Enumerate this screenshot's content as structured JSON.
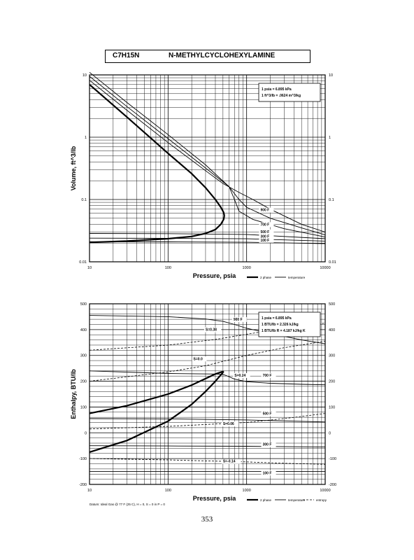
{
  "header": {
    "formula": "C7H15N",
    "compound_name": "N-METHYLCYCLOHEXYLAMINE"
  },
  "page_number": "353",
  "footer_note": "Datum: Ideal Gas @ 77 F (25 C), H = 0, S = 0 in P = 0",
  "chart_data": [
    {
      "type": "line",
      "title": "",
      "xlabel": "Pressure,  psia",
      "ylabel": "Volume, ft^3/lb",
      "x_scale": "log",
      "y_scale": "log",
      "xlim": [
        10,
        10000
      ],
      "ylim": [
        0.01,
        10
      ],
      "x_ticks": [
        "10",
        "100",
        "1000",
        "10000"
      ],
      "y_ticks_left": [
        "10",
        "1",
        "0.1",
        "0.01"
      ],
      "y_ticks_right": [
        "10",
        "1",
        "0.1",
        "0.01"
      ],
      "grid": true,
      "legend": {
        "position": "bottom-right",
        "entries": [
          "2 phase",
          "temperature"
        ]
      },
      "info_box": [
        "1 psia = 6.895 kPa",
        "1 ft^3/lb = .0624 m^3/kg"
      ],
      "series": [
        {
          "name": "",
          "style": "2 phase",
          "x": [
            10,
            30,
            100,
            200,
            300,
            400,
            470,
            510,
            520
          ],
          "y": [
            7,
            2.1,
            0.55,
            0.26,
            0.155,
            0.1,
            0.075,
            0.062,
            0.055
          ]
        },
        {
          "name": "",
          "style": "2 phase",
          "x": [
            10,
            30,
            100,
            200,
            300,
            400,
            470,
            510,
            520
          ],
          "y": [
            0.0205,
            0.0215,
            0.0235,
            0.0255,
            0.0285,
            0.033,
            0.04,
            0.048,
            0.055
          ]
        },
        {
          "name": "",
          "style": "temperature",
          "x": [
            10,
            30,
            100,
            300,
            500,
            800,
            1200,
            2000,
            5000,
            10000
          ],
          "y": [
            8.2,
            2.7,
            0.82,
            0.29,
            0.18,
            0.13,
            0.1,
            0.07,
            0.04,
            0.03
          ]
        },
        {
          "name": "",
          "style": "temperature",
          "x": [
            10,
            30,
            100,
            300,
            600,
            800,
            1000,
            2000,
            5000,
            10000
          ],
          "y": [
            9.5,
            3.1,
            0.95,
            0.32,
            0.16,
            0.1,
            0.075,
            0.05,
            0.035,
            0.027
          ]
        },
        {
          "name": "",
          "style": "temperature",
          "x": [
            10,
            30,
            100,
            300,
            600,
            700,
            800,
            1200,
            3000,
            10000
          ],
          "y": [
            11,
            3.6,
            1.1,
            0.36,
            0.16,
            0.1,
            0.065,
            0.048,
            0.034,
            0.025
          ]
        },
        {
          "name": "",
          "style": "temperature",
          "x": [
            10,
            100,
            1000,
            10000
          ],
          "y": [
            0.0285,
            0.0283,
            0.0275,
            0.0235
          ]
        },
        {
          "name": "",
          "style": "temperature",
          "x": [
            10,
            100,
            1000,
            10000
          ],
          "y": [
            0.024,
            0.0238,
            0.0234,
            0.0215
          ]
        },
        {
          "name": "",
          "style": "temperature",
          "x": [
            10,
            100,
            1000,
            10000
          ],
          "y": [
            0.021,
            0.0209,
            0.0206,
            0.0196
          ]
        }
      ],
      "curve_labels": [
        {
          "text": "900 F",
          "x": 1500,
          "y": 0.065
        },
        {
          "text": "700 F",
          "x": 1500,
          "y": 0.038
        },
        {
          "text": "500 F",
          "x": 1500,
          "y": 0.029
        },
        {
          "text": "300 F",
          "x": 1500,
          "y": 0.0245
        },
        {
          "text": "100 F",
          "x": 1500,
          "y": 0.0213
        }
      ]
    },
    {
      "type": "line",
      "title": "",
      "xlabel": "Pressure,  psia",
      "ylabel": "Enthalpy, BTU/lb",
      "x_scale": "log",
      "y_scale": "linear",
      "xlim": [
        10,
        10000
      ],
      "ylim": [
        -200,
        500
      ],
      "x_ticks": [
        "10",
        "100",
        "1000",
        "10000"
      ],
      "y_ticks_left": [
        "500",
        "400",
        "300",
        "200",
        "100",
        "0",
        "-100",
        "-200"
      ],
      "y_ticks_right": [
        "500",
        "400",
        "300",
        "200",
        "100",
        "0",
        "-100",
        "-200"
      ],
      "grid": true,
      "legend": {
        "position": "bottom-right",
        "entries": [
          "2 phase",
          "temperature",
          "entropy"
        ]
      },
      "info_box": [
        "1 psia = 6.895 kPa",
        "1 BTU/lb = 2.326 kJ/kg",
        "1 BTU/lb R = 4.187 kJ/kg K"
      ],
      "series": [
        {
          "name": "",
          "style": "2 phase",
          "x": [
            10,
            30,
            100,
            200,
            300,
            400,
            480,
            510
          ],
          "y": [
            75,
            105,
            150,
            185,
            210,
            228,
            236,
            238
          ]
        },
        {
          "name": "",
          "style": "2 phase",
          "x": [
            10,
            30,
            100,
            200,
            300,
            400,
            480,
            510
          ],
          "y": [
            -75,
            -30,
            45,
            110,
            160,
            200,
            228,
            238
          ]
        },
        {
          "name": "",
          "style": "temperature",
          "x": [
            10,
            100,
            300,
            500,
            700,
            1000,
            2000,
            5000,
            10000
          ],
          "y": [
            455,
            450,
            441,
            432,
            420,
            405,
            385,
            360,
            345
          ]
        },
        {
          "name": "",
          "style": "temperature",
          "x": [
            10,
            100,
            400,
            500,
            550,
            700,
            1000,
            2000,
            5000,
            10000
          ],
          "y": [
            240,
            230,
            228,
            226,
            222,
            208,
            198,
            192,
            188,
            186
          ]
        },
        {
          "name": "",
          "style": "temperature",
          "x": [
            10,
            100,
            1000,
            10000
          ],
          "y": [
            55,
            54,
            50,
            42
          ]
        },
        {
          "name": "",
          "style": "temperature",
          "x": [
            10,
            100,
            1000,
            10000
          ],
          "y": [
            -50,
            -51,
            -52,
            -55
          ]
        },
        {
          "name": "",
          "style": "temperature",
          "x": [
            10,
            100,
            1000,
            10000
          ],
          "y": [
            -150,
            -150,
            -150,
            -150
          ]
        },
        {
          "name": "",
          "style": "entropy",
          "x": [
            10,
            100,
            400,
            1000,
            3000,
            10000
          ],
          "y": [
            320,
            340,
            362,
            382,
            405,
            425
          ]
        },
        {
          "name": "",
          "style": "entropy",
          "x": [
            10,
            100,
            300,
            1000,
            3000,
            10000
          ],
          "y": [
            200,
            236,
            260,
            300,
            330,
            355
          ]
        },
        {
          "name": "",
          "style": "entropy",
          "x": [
            10,
            100,
            1000,
            3000,
            10000
          ],
          "y": [
            15,
            25,
            40,
            55,
            75
          ]
        },
        {
          "name": "",
          "style": "entropy",
          "x": [
            10,
            100,
            1000,
            3000,
            10000
          ],
          "y": [
            -100,
            -105,
            -113,
            -118,
            -122
          ]
        }
      ],
      "curve_labels": [
        {
          "text": "900 F",
          "x": 680,
          "y": 435
        },
        {
          "text": "S=0.38",
          "x": 300,
          "y": 395
        },
        {
          "text": "S=0.0",
          "x": 210,
          "y": 282
        },
        {
          "text": "S=0.24",
          "x": 700,
          "y": 218
        },
        {
          "text": "700 F",
          "x": 1600,
          "y": 218
        },
        {
          "text": "500 F",
          "x": 1600,
          "y": 70
        },
        {
          "text": "S=0.06",
          "x": 500,
          "y": 30
        },
        {
          "text": "300 F",
          "x": 1600,
          "y": -50
        },
        {
          "text": "S=-0.14",
          "x": 500,
          "y": -115
        },
        {
          "text": "100 F",
          "x": 1600,
          "y": -160
        }
      ]
    }
  ]
}
